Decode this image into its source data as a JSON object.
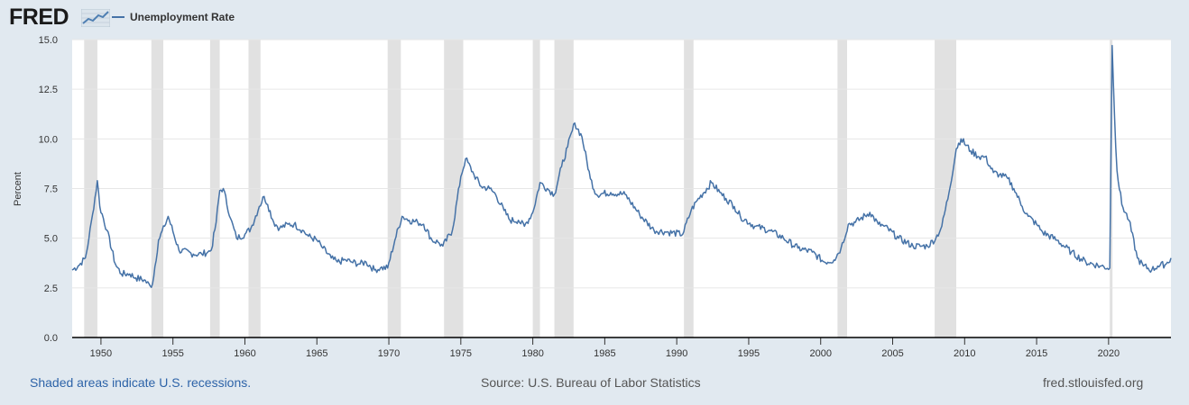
{
  "logo": {
    "text": "FRED"
  },
  "legend": {
    "series_label": "Unemployment Rate"
  },
  "footer": {
    "recession_note": "Shaded areas indicate U.S. recessions.",
    "source": "Source: U.S. Bureau of Labor Statistics",
    "site": "fred.stlouisfed.org"
  },
  "colors": {
    "series": "#4572a7",
    "recession": "#e1e1e1",
    "background": "#e1e9f0",
    "plot": "#ffffff"
  },
  "chart_data": {
    "type": "line",
    "title": "",
    "xlabel": "",
    "ylabel": "Percent",
    "xlim": [
      "1948-01",
      "2024-05"
    ],
    "ylim": [
      0,
      15
    ],
    "yticks": [
      "0.0",
      "2.5",
      "5.0",
      "7.5",
      "10.0",
      "12.5",
      "15.0"
    ],
    "xticks": [
      "1950",
      "1955",
      "1960",
      "1965",
      "1970",
      "1975",
      "1980",
      "1985",
      "1990",
      "1995",
      "2000",
      "2005",
      "2010",
      "2015",
      "2020"
    ],
    "grid": true,
    "legend_position": "top-left",
    "recessions": [
      [
        "1948-11",
        "1949-10"
      ],
      [
        "1953-07",
        "1954-05"
      ],
      [
        "1957-08",
        "1958-04"
      ],
      [
        "1960-04",
        "1961-02"
      ],
      [
        "1969-12",
        "1970-11"
      ],
      [
        "1973-11",
        "1975-03"
      ],
      [
        "1980-01",
        "1980-07"
      ],
      [
        "1981-07",
        "1982-11"
      ],
      [
        "1990-07",
        "1991-03"
      ],
      [
        "2001-03",
        "2001-11"
      ],
      [
        "2007-12",
        "2009-06"
      ],
      [
        "2020-02",
        "2020-04"
      ]
    ],
    "series": [
      {
        "name": "Unemployment Rate",
        "x": [
          "1948-01",
          "1948-06",
          "1948-12",
          "1949-03",
          "1949-06",
          "1949-10",
          "1949-12",
          "1950-06",
          "1951-01",
          "1951-06",
          "1952-01",
          "1952-06",
          "1953-01",
          "1953-06",
          "1953-08",
          "1954-01",
          "1954-06",
          "1954-09",
          "1955-06",
          "1956-06",
          "1957-01",
          "1957-06",
          "1957-09",
          "1958-01",
          "1958-04",
          "1958-07",
          "1959-01",
          "1959-06",
          "1960-01",
          "1960-06",
          "1961-01",
          "1961-05",
          "1961-08",
          "1962-01",
          "1962-06",
          "1963-01",
          "1963-06",
          "1964-01",
          "1964-06",
          "1965-01",
          "1965-06",
          "1966-01",
          "1966-06",
          "1967-01",
          "1967-06",
          "1968-01",
          "1968-06",
          "1969-01",
          "1969-06",
          "1969-12",
          "1970-06",
          "1970-12",
          "1971-06",
          "1972-01",
          "1972-06",
          "1973-01",
          "1973-06",
          "1973-10",
          "1974-06",
          "1975-01",
          "1975-05",
          "1975-12",
          "1976-06",
          "1977-01",
          "1977-06",
          "1978-01",
          "1978-06",
          "1979-01",
          "1979-06",
          "1980-01",
          "1980-07",
          "1981-01",
          "1981-07",
          "1982-01",
          "1982-06",
          "1982-12",
          "1983-06",
          "1984-01",
          "1984-06",
          "1985-06",
          "1986-06",
          "1987-06",
          "1988-06",
          "1989-06",
          "1990-06",
          "1991-01",
          "1991-06",
          "1992-06",
          "1993-01",
          "1993-06",
          "1994-01",
          "1994-06",
          "1995-06",
          "1996-06",
          "1997-06",
          "1998-06",
          "1999-06",
          "2000-04",
          "2000-12",
          "2001-06",
          "2001-12",
          "2002-06",
          "2003-06",
          "2004-01",
          "2004-06",
          "2005-06",
          "2006-06",
          "2007-01",
          "2007-06",
          "2008-01",
          "2008-06",
          "2008-12",
          "2009-06",
          "2009-10",
          "2010-06",
          "2011-01",
          "2011-06",
          "2012-01",
          "2012-06",
          "2013-01",
          "2013-06",
          "2014-01",
          "2014-06",
          "2015-01",
          "2015-06",
          "2016-06",
          "2017-06",
          "2018-06",
          "2019-06",
          "2020-02",
          "2020-04",
          "2020-06",
          "2020-08",
          "2020-12",
          "2021-06",
          "2022-01",
          "2022-06",
          "2023-01",
          "2023-06",
          "2024-01",
          "2024-05"
        ],
        "values": [
          3.4,
          3.6,
          4.0,
          5.0,
          6.2,
          7.9,
          6.6,
          5.4,
          3.7,
          3.2,
          3.2,
          3.0,
          2.9,
          2.6,
          2.7,
          4.9,
          5.6,
          6.1,
          4.4,
          4.2,
          4.2,
          4.3,
          4.4,
          5.8,
          7.4,
          7.5,
          6.0,
          5.0,
          5.2,
          5.5,
          6.6,
          7.1,
          6.7,
          5.8,
          5.5,
          5.7,
          5.7,
          5.4,
          5.1,
          4.9,
          4.5,
          4.0,
          3.8,
          3.9,
          3.8,
          3.7,
          3.8,
          3.4,
          3.5,
          3.5,
          4.9,
          6.1,
          5.9,
          5.8,
          5.7,
          4.9,
          4.8,
          4.6,
          5.4,
          8.1,
          9.0,
          8.2,
          7.6,
          7.5,
          7.2,
          6.4,
          5.9,
          5.9,
          5.6,
          6.3,
          7.8,
          7.5,
          7.2,
          8.6,
          9.6,
          10.8,
          10.1,
          8.0,
          7.2,
          7.3,
          7.2,
          6.2,
          5.4,
          5.3,
          5.2,
          6.4,
          6.9,
          7.8,
          7.3,
          7.0,
          6.6,
          6.1,
          5.6,
          5.4,
          5.0,
          4.5,
          4.3,
          3.8,
          3.9,
          4.5,
          5.7,
          5.8,
          6.3,
          5.7,
          5.6,
          5.0,
          4.6,
          4.6,
          4.6,
          5.0,
          5.6,
          7.3,
          9.5,
          10.0,
          9.4,
          9.1,
          9.1,
          8.3,
          8.2,
          8.0,
          7.5,
          6.6,
          6.1,
          5.7,
          5.3,
          4.9,
          4.3,
          3.8,
          3.6,
          3.5,
          14.7,
          11.1,
          8.4,
          6.7,
          5.9,
          4.0,
          3.6,
          3.4,
          3.6,
          3.7,
          4.0
        ]
      }
    ]
  }
}
